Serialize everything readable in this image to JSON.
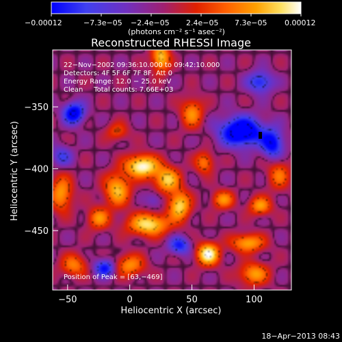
{
  "chart_data": {
    "type": "heatmap",
    "title": "Reconstructed RHESSI Image",
    "xlabel": "Heliocentric X (arcsec)",
    "ylabel": "Heliocentric Y (arcsec)",
    "xlim": [
      -62,
      130
    ],
    "ylim": [
      -498,
      -304
    ],
    "x_ticks": [
      -50,
      0,
      50,
      100
    ],
    "x_tick_labels": [
      "−50",
      "0",
      "50",
      "100"
    ],
    "y_ticks": [
      -350,
      -400,
      -450
    ],
    "y_tick_labels": [
      "−350",
      "−400",
      "−450"
    ],
    "colorbar": {
      "min": -0.00012,
      "max": 0.00012,
      "tick_labels": [
        "−0.00012",
        "−7.3e−05",
        "−2.4e−05",
        "2.4e−05",
        "7.3e−05",
        "0.00012"
      ],
      "unit_label": "(photons cm⁻² s⁻¹ asec⁻²)",
      "colormap": [
        "#0000ff",
        "#4040f0",
        "#7030c0",
        "#a02070",
        "#e02000",
        "#ff6000",
        "#ffa000",
        "#ffe060",
        "#ffffff"
      ]
    },
    "annotations": [
      "22−Nov−2002 09:36:10.000 to 09:42:10.000",
      "Detectors: 4F 5F 6F 7F 8F, Att 0",
      "Energy Range: 12.0 − 25.0 keV",
      "Clean     Total counts: 7.66E+03"
    ],
    "peak_label": "Position of Peak = [63,−469]",
    "timestamp": "18−Apr−2013 08:43",
    "sources": [
      {
        "x": 10,
        "y": -398,
        "amp": 1.0,
        "sx": 9,
        "sy": 6
      },
      {
        "x": 30,
        "y": -409,
        "amp": 0.75,
        "sx": 7,
        "sy": 7
      },
      {
        "x": -10,
        "y": -417,
        "amp": 0.7,
        "sx": 7,
        "sy": 9
      },
      {
        "x": 40,
        "y": -430,
        "amp": 0.8,
        "sx": 6,
        "sy": 8
      },
      {
        "x": 15,
        "y": -445,
        "amp": 0.85,
        "sx": 11,
        "sy": 6
      },
      {
        "x": -25,
        "y": -440,
        "amp": 0.55,
        "sx": 6,
        "sy": 6
      },
      {
        "x": 63,
        "y": -469,
        "amp": 1.0,
        "sx": 6,
        "sy": 6
      },
      {
        "x": 95,
        "y": -460,
        "amp": 0.65,
        "sx": 9,
        "sy": 5
      },
      {
        "x": 75,
        "y": -425,
        "amp": 0.55,
        "sx": 6,
        "sy": 5
      },
      {
        "x": 105,
        "y": -430,
        "amp": 0.6,
        "sx": 6,
        "sy": 5
      },
      {
        "x": 120,
        "y": -405,
        "amp": 0.45,
        "sx": 6,
        "sy": 8
      },
      {
        "x": 60,
        "y": -395,
        "amp": 0.5,
        "sx": 5,
        "sy": 6
      },
      {
        "x": 50,
        "y": -355,
        "amp": 0.55,
        "sx": 6,
        "sy": 8
      },
      {
        "x": 25,
        "y": -310,
        "amp": 0.75,
        "sx": 5,
        "sy": 8
      },
      {
        "x": -55,
        "y": -420,
        "amp": 0.6,
        "sx": 6,
        "sy": 10
      },
      {
        "x": -45,
        "y": -478,
        "amp": 0.5,
        "sx": 7,
        "sy": 6
      },
      {
        "x": 0,
        "y": -478,
        "amp": 0.55,
        "sx": 8,
        "sy": 6
      },
      {
        "x": 100,
        "y": -485,
        "amp": 0.6,
        "sx": 8,
        "sy": 6
      },
      {
        "x": -10,
        "y": -370,
        "amp": 0.35,
        "sx": 6,
        "sy": 5
      },
      {
        "x": -45,
        "y": -355,
        "amp": -0.7,
        "sx": 6,
        "sy": 6
      },
      {
        "x": 90,
        "y": -370,
        "amp": -0.85,
        "sx": 12,
        "sy": 8
      },
      {
        "x": 115,
        "y": -380,
        "amp": -0.6,
        "sx": 6,
        "sy": 8
      },
      {
        "x": -20,
        "y": -480,
        "amp": -0.55,
        "sx": 6,
        "sy": 5
      },
      {
        "x": 40,
        "y": -462,
        "amp": -0.5,
        "sx": 6,
        "sy": 5
      },
      {
        "x": 105,
        "y": -330,
        "amp": -0.5,
        "sx": 7,
        "sy": 6
      },
      {
        "x": -55,
        "y": -390,
        "amp": -0.35,
        "sx": 6,
        "sy": 6
      },
      {
        "x": 20,
        "y": -425,
        "amp": -0.25,
        "sx": 5,
        "sy": 5
      }
    ],
    "marker": {
      "x": 105,
      "y": -373
    }
  }
}
